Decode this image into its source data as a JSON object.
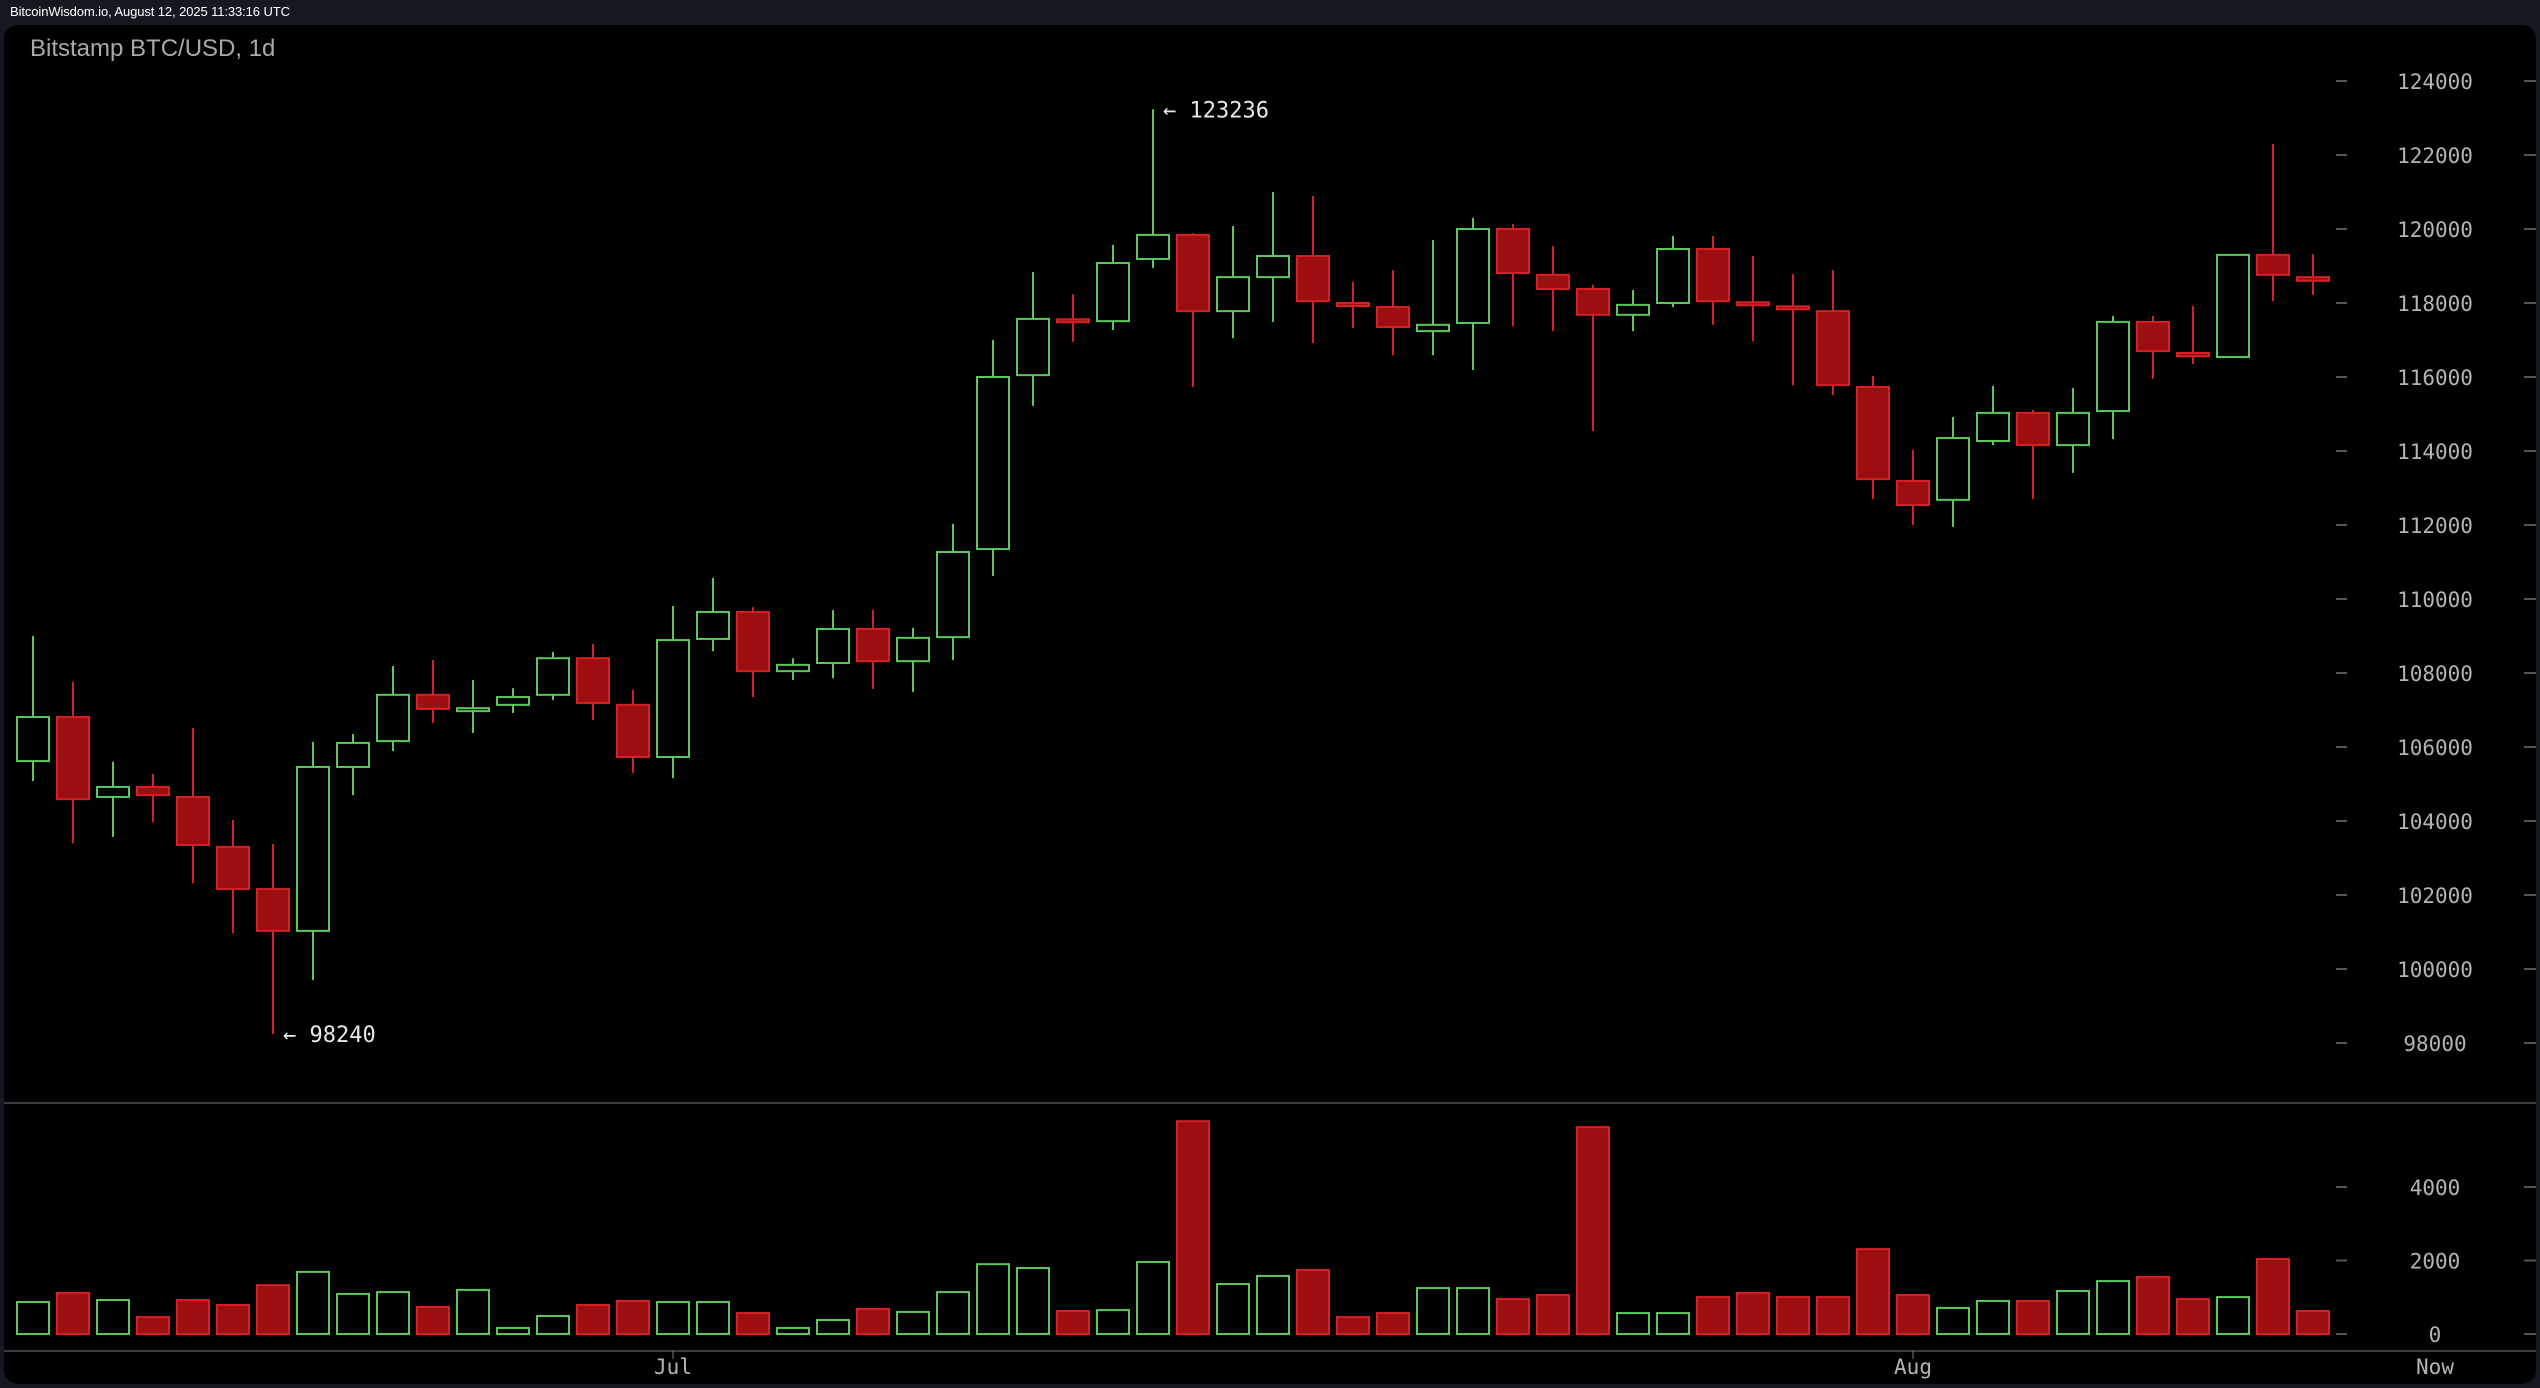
{
  "header": {
    "source_timestamp": "BitcoinWisdom.io, August 12, 2025 11:33:16 UTC"
  },
  "chart": {
    "title": "Bitstamp BTC/USD, 1d"
  },
  "colors": {
    "up": "#5ac85a",
    "down_fill": "#9b0f12",
    "down_stroke": "#d42026",
    "axis_text": "#b4b4b4",
    "divider": "#3c3c3c",
    "background": "#000000",
    "frame": "#141821"
  },
  "chart_data": [
    {
      "type": "candlestick",
      "title": "Bitstamp BTC/USD, 1d",
      "xlabel": "",
      "ylabel": "",
      "ylim": [
        96500,
        124800
      ],
      "yticks": [
        98000,
        100000,
        102000,
        104000,
        106000,
        108000,
        110000,
        112000,
        114000,
        116000,
        118000,
        120000,
        122000,
        124000
      ],
      "xticks": [
        {
          "label": "Jul",
          "index": 16
        },
        {
          "label": "Aug",
          "index": 47
        },
        {
          "label": "Now",
          "index": 60.8
        }
      ],
      "grid": false,
      "annotations": [
        {
          "text": "← 123236",
          "index": 28,
          "value": 123236
        },
        {
          "text": "← 98240",
          "index": 6,
          "value": 98240
        }
      ],
      "ohlc": [
        [
          105620,
          109000,
          105080,
          106810
        ],
        [
          106810,
          107760,
          103400,
          104590
        ],
        [
          104650,
          105600,
          103570,
          104920
        ],
        [
          104920,
          105270,
          103970,
          104700
        ],
        [
          104650,
          106510,
          102320,
          103350
        ],
        [
          103300,
          104030,
          100970,
          102160
        ],
        [
          102160,
          103380,
          98240,
          101030
        ],
        [
          101030,
          106140,
          99700,
          105460
        ],
        [
          105460,
          106350,
          104700,
          106110
        ],
        [
          106160,
          108190,
          105890,
          107410
        ],
        [
          107410,
          108350,
          106650,
          107030
        ],
        [
          107000,
          107810,
          106380,
          107050
        ],
        [
          107140,
          107590,
          106920,
          107350
        ],
        [
          107410,
          108570,
          107270,
          108400
        ],
        [
          108400,
          108780,
          106730,
          107190
        ],
        [
          107140,
          107540,
          105300,
          105730
        ],
        [
          105730,
          109810,
          105160,
          108890
        ],
        [
          108920,
          110570,
          108590,
          109650
        ],
        [
          109650,
          109780,
          107350,
          108050
        ],
        [
          108050,
          108400,
          107810,
          108220
        ],
        [
          108270,
          109700,
          107860,
          109190
        ],
        [
          109190,
          109700,
          107570,
          108320
        ],
        [
          108320,
          109220,
          107490,
          108950
        ],
        [
          108970,
          112030,
          108350,
          111270
        ],
        [
          111350,
          117000,
          110620,
          116000
        ],
        [
          116050,
          118840,
          115220,
          117570
        ],
        [
          117560,
          118240,
          116950,
          117520
        ],
        [
          117510,
          119570,
          117270,
          119080
        ],
        [
          119190,
          123236,
          118950,
          119840
        ],
        [
          119840,
          119890,
          115730,
          117780
        ],
        [
          117780,
          120080,
          117050,
          118700
        ],
        [
          118700,
          121000,
          117490,
          119270
        ],
        [
          119270,
          120890,
          116920,
          118050
        ],
        [
          118000,
          118570,
          117320,
          117940
        ],
        [
          117890,
          118890,
          116590,
          117350
        ],
        [
          117240,
          119700,
          116590,
          117410
        ],
        [
          117460,
          120300,
          116190,
          120000
        ],
        [
          120000,
          120140,
          117380,
          118810
        ],
        [
          118760,
          119540,
          117240,
          118380
        ],
        [
          118380,
          118490,
          114540,
          117680
        ],
        [
          117680,
          118350,
          117240,
          117950
        ],
        [
          118000,
          119810,
          117890,
          119460
        ],
        [
          119460,
          119810,
          117410,
          118050
        ],
        [
          118020,
          119270,
          116970,
          117980
        ],
        [
          117910,
          118780,
          115780,
          117860
        ],
        [
          117780,
          118890,
          115510,
          115780
        ],
        [
          115730,
          116030,
          112700,
          113240
        ],
        [
          113190,
          114030,
          112000,
          112540
        ],
        [
          112680,
          114920,
          111950,
          114350
        ],
        [
          114270,
          115760,
          114160,
          115030
        ],
        [
          115030,
          115110,
          112700,
          114160
        ],
        [
          114160,
          115700,
          113410,
          115030
        ],
        [
          115080,
          117650,
          114320,
          117490
        ],
        [
          117490,
          117650,
          115950,
          116700
        ],
        [
          116650,
          117920,
          116350,
          116560
        ],
        [
          116540,
          119300,
          116540,
          119300
        ],
        [
          119300,
          122300,
          118050,
          118760
        ],
        [
          118700,
          119320,
          118220,
          118600
        ]
      ]
    },
    {
      "type": "bar",
      "title": "Volume",
      "ylim": [
        0,
        6000
      ],
      "yticks": [
        0,
        2000,
        4000
      ],
      "values": [
        870,
        1115,
        925,
        460,
        925,
        790,
        1330,
        1690,
        1090,
        1140,
        735,
        1200,
        165,
        490,
        790,
        900,
        870,
        870,
        570,
        165,
        380,
        680,
        600,
        1140,
        1900,
        1795,
        625,
        650,
        1960,
        5790,
        1360,
        1580,
        1740,
        460,
        570,
        1250,
        1250,
        950,
        1060,
        5630,
        570,
        570,
        1005,
        1115,
        1005,
        1005,
        2310,
        1060,
        710,
        900,
        900,
        1170,
        1440,
        1550,
        950,
        1005,
        2040,
        625
      ]
    }
  ]
}
